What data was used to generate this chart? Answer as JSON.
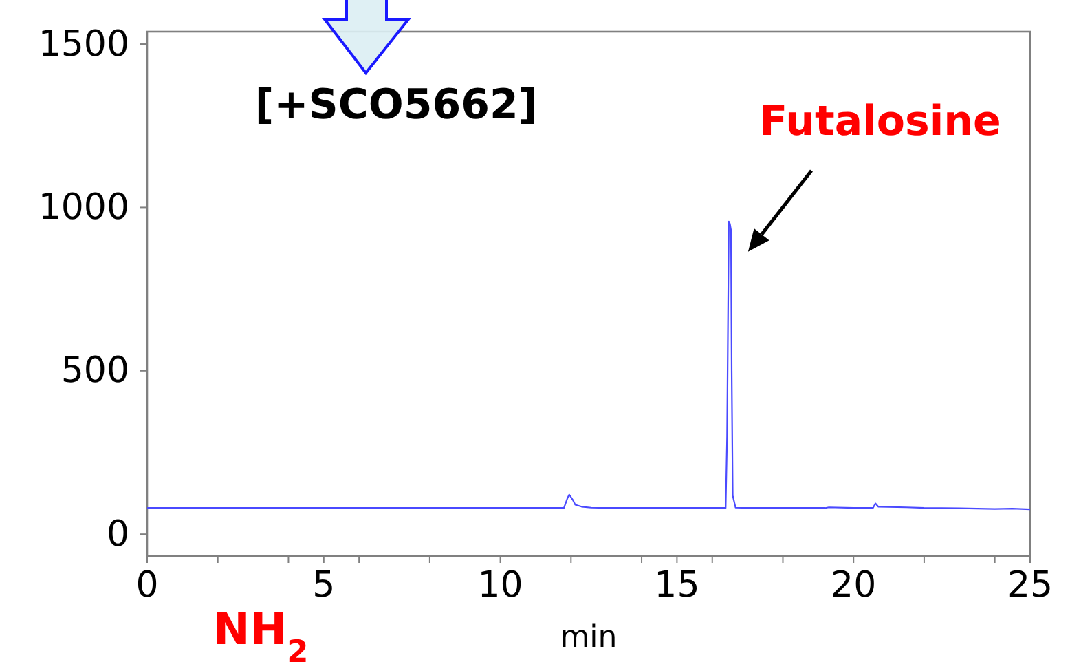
{
  "chart_data": {
    "type": "line",
    "xlabel": "min",
    "annotations": [
      {
        "text": "Futalosine",
        "x": 16.47,
        "y": 957
      },
      "[+SCO5662]",
      "NH$_{2}$"
    ],
    "xlim": [
      0,
      25
    ],
    "xticks": [
      0,
      {
        "value": 2,
        "label": null
      },
      {
        "value": 4,
        "label": null
      },
      5,
      {
        "value": 6,
        "label": null
      },
      {
        "value": 8,
        "label": null
      },
      10,
      {
        "value": 12,
        "label": null
      },
      {
        "value": 14,
        "label": null
      },
      15,
      {
        "value": 16,
        "label": null
      },
      {
        "value": 18,
        "label": null
      },
      20,
      {
        "value": 22,
        "label": null
      },
      {
        "value": 24,
        "label": null
      },
      25
    ],
    "ylim": [
      -67,
      1538
    ],
    "yticks": [
      0,
      500,
      1000,
      1500
    ],
    "grid": false,
    "marker": "none",
    "line_style": "solid",
    "series": [
      {
        "color": "#4a4aff",
        "x": [
          0,
          5,
          10,
          11.8,
          11.9,
          11.95,
          12.05,
          12.12,
          12.3,
          12.57,
          13,
          14,
          15,
          16,
          16.38,
          16.42,
          16.45,
          16.47,
          16.5,
          16.53,
          16.55,
          16.58,
          16.66,
          17,
          18,
          19.2,
          19.3,
          20,
          20.55,
          20.62,
          20.7,
          21.5,
          22,
          23,
          24,
          24.5,
          25
        ],
        "values": [
          80,
          80,
          80,
          80,
          110,
          121,
          105,
          90,
          84,
          81,
          80,
          80,
          80,
          80,
          80,
          300,
          700,
          957,
          950,
          931,
          500,
          118,
          81,
          80,
          80,
          80,
          82,
          80,
          80,
          94,
          84,
          82,
          80,
          79,
          77,
          78,
          76
        ]
      }
    ]
  }
}
